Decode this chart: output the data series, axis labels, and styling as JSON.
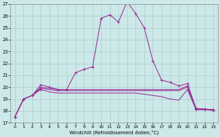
{
  "xlabel": "Windchill (Refroidissement éolien,°C)",
  "bg_color": "#cce8e8",
  "grid_color": "#aacccc",
  "line_color": "#993399",
  "xlim": [
    -0.5,
    23.5
  ],
  "ylim": [
    17,
    27
  ],
  "xticks": [
    0,
    1,
    2,
    3,
    4,
    5,
    6,
    7,
    8,
    9,
    10,
    11,
    12,
    13,
    14,
    15,
    16,
    17,
    18,
    19,
    20,
    21,
    22,
    23
  ],
  "yticks": [
    17,
    18,
    19,
    20,
    21,
    22,
    23,
    24,
    25,
    26,
    27
  ],
  "series": [
    [
      17.5,
      19.0,
      19.3,
      20.2,
      20.0,
      19.8,
      19.8,
      21.2,
      21.5,
      21.7,
      25.8,
      26.1,
      25.5,
      27.2,
      26.2,
      25.0,
      22.2,
      20.6,
      20.4,
      20.1,
      20.3,
      18.2,
      18.15,
      18.1
    ],
    [
      17.5,
      19.0,
      19.3,
      19.8,
      19.6,
      19.5,
      19.5,
      19.5,
      19.5,
      19.5,
      19.5,
      19.5,
      19.5,
      19.5,
      19.5,
      19.4,
      19.3,
      19.2,
      19.0,
      18.9,
      19.8,
      18.1,
      18.1,
      18.05
    ],
    [
      17.5,
      19.0,
      19.3,
      19.9,
      19.8,
      19.7,
      19.7,
      19.7,
      19.7,
      19.7,
      19.7,
      19.7,
      19.7,
      19.7,
      19.7,
      19.7,
      19.7,
      19.7,
      19.7,
      19.7,
      20.0,
      18.15,
      18.1,
      18.05
    ],
    [
      17.5,
      19.0,
      19.3,
      20.0,
      19.9,
      19.8,
      19.8,
      19.8,
      19.8,
      19.8,
      19.8,
      19.8,
      19.8,
      19.8,
      19.8,
      19.8,
      19.8,
      19.8,
      19.8,
      19.8,
      20.1,
      18.2,
      18.15,
      18.1
    ]
  ]
}
